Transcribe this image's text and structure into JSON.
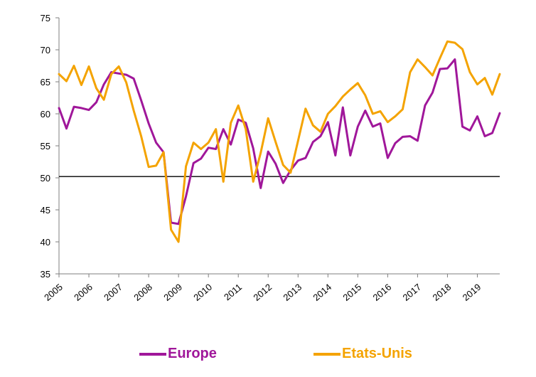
{
  "chart_data": {
    "type": "line",
    "title": "",
    "xlabel": "",
    "ylabel": "",
    "ylim": [
      35,
      75
    ],
    "yticks": [
      35,
      40,
      45,
      50,
      55,
      60,
      65,
      70,
      75
    ],
    "xlim": [
      2005,
      2019.75
    ],
    "xticks": [
      "2005",
      "2006",
      "2007",
      "2008",
      "2009",
      "2010",
      "2011",
      "2012",
      "2013",
      "2014",
      "2015",
      "2016",
      "2017",
      "2018",
      "2019"
    ],
    "reference_line": 50.2,
    "grid": false,
    "legend_position": "bottom",
    "series": [
      {
        "name": "Europe",
        "color": "#a0179a",
        "x": [
          2005,
          2005.25,
          2005.5,
          2005.75,
          2006,
          2006.25,
          2006.5,
          2006.75,
          2007,
          2007.25,
          2007.5,
          2007.75,
          2008,
          2008.25,
          2008.5,
          2008.75,
          2009,
          2009.25,
          2009.5,
          2009.75,
          2010,
          2010.25,
          2010.5,
          2010.75,
          2011,
          2011.25,
          2011.5,
          2011.75,
          2012,
          2012.25,
          2012.5,
          2012.75,
          2013,
          2013.25,
          2013.5,
          2013.75,
          2014,
          2014.25,
          2014.5,
          2014.75,
          2015,
          2015.25,
          2015.5,
          2015.75,
          2016,
          2016.25,
          2016.5,
          2016.75,
          2017,
          2017.25,
          2017.5,
          2017.75,
          2018,
          2018.25,
          2018.5,
          2018.75,
          2019,
          2019.25,
          2019.5,
          2019.75
        ],
        "values": [
          60.9,
          57.7,
          61.1,
          60.9,
          60.6,
          61.8,
          64.6,
          66.5,
          66.3,
          66.1,
          65.5,
          62.1,
          58.5,
          55.5,
          54.0,
          43.0,
          42.8,
          47.1,
          52.3,
          53.0,
          54.7,
          54.5,
          57.6,
          55.2,
          59.1,
          58.6,
          54.6,
          48.4,
          54.1,
          52.2,
          49.2,
          51.2,
          52.7,
          53.1,
          55.6,
          56.5,
          58.7,
          53.5,
          61.0,
          53.5,
          58.0,
          60.5,
          58.0,
          58.5,
          53.1,
          55.4,
          56.4,
          56.5,
          55.8,
          61.3,
          63.3,
          67.0,
          67.1,
          68.5,
          58.0,
          57.4,
          59.6,
          56.5,
          57.0,
          60.1
        ]
      },
      {
        "name": "Etats-Unis",
        "color": "#f4a300",
        "x": [
          2005,
          2005.25,
          2005.5,
          2005.75,
          2006,
          2006.25,
          2006.5,
          2006.75,
          2007,
          2007.25,
          2007.5,
          2007.75,
          2008,
          2008.25,
          2008.5,
          2008.75,
          2009,
          2009.25,
          2009.5,
          2009.75,
          2010,
          2010.25,
          2010.5,
          2010.75,
          2011,
          2011.25,
          2011.5,
          2011.75,
          2012,
          2012.25,
          2012.5,
          2012.75,
          2013,
          2013.25,
          2013.5,
          2013.75,
          2014,
          2014.25,
          2014.5,
          2014.75,
          2015,
          2015.25,
          2015.5,
          2015.75,
          2016,
          2016.25,
          2016.5,
          2016.75,
          2017,
          2017.25,
          2017.5,
          2017.75,
          2018,
          2018.25,
          2018.5,
          2018.75,
          2019,
          2019.25,
          2019.5,
          2019.75
        ],
        "values": [
          66.2,
          65.1,
          67.5,
          64.5,
          67.4,
          64.0,
          62.2,
          66.2,
          67.4,
          64.9,
          60.5,
          56.5,
          51.7,
          51.9,
          54.0,
          41.9,
          40.0,
          51.8,
          55.5,
          54.5,
          55.5,
          57.6,
          49.4,
          58.6,
          61.3,
          57.6,
          49.4,
          53.9,
          59.3,
          55.6,
          52.0,
          50.8,
          55.8,
          60.8,
          58.2,
          57.2,
          60.0,
          61.2,
          62.7,
          63.8,
          64.8,
          62.9,
          60.0,
          60.4,
          58.7,
          59.6,
          60.7,
          66.5,
          68.5,
          67.3,
          66.0,
          68.7,
          71.3,
          71.1,
          70.1,
          66.5,
          64.6,
          65.6,
          63.0,
          66.2
        ]
      }
    ]
  },
  "legend": {
    "items": [
      {
        "label": "Europe",
        "color": "#a0179a"
      },
      {
        "label": "Etats-Unis",
        "color": "#f4a300"
      }
    ]
  }
}
